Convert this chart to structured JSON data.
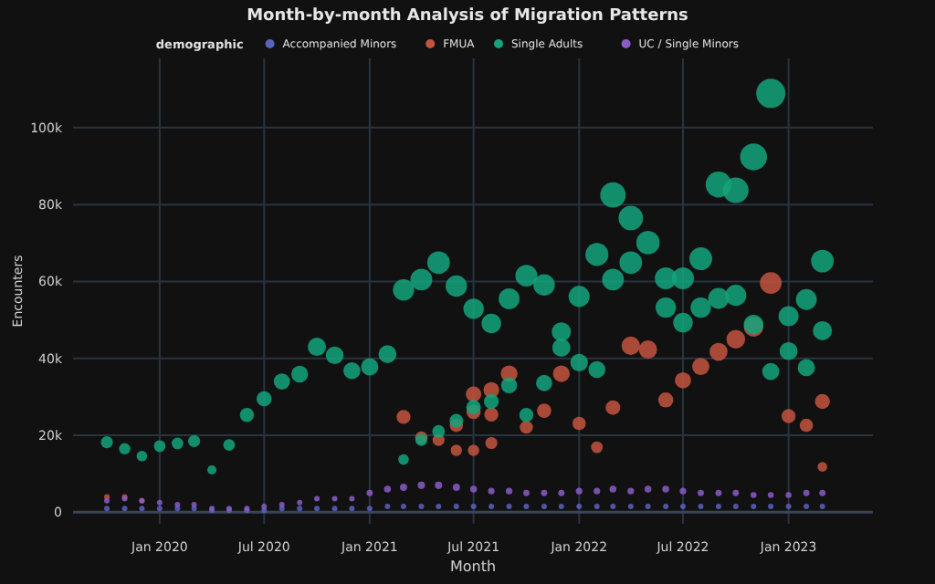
{
  "chart_data": {
    "type": "bubble",
    "title": "Month-by-month Analysis of Migration Patterns",
    "xlabel": "Month",
    "ylabel": "Encounters",
    "legend_title": "demographic",
    "legend": "top",
    "grid": true,
    "marker": "circle",
    "xlim": [
      "2019-08-03",
      "2023-05-28"
    ],
    "ylim": [
      -3000,
      118000
    ],
    "xticks": [
      {
        "value": "2020-01",
        "label": "Jan 2020"
      },
      {
        "value": "2020-07",
        "label": "Jul 2020"
      },
      {
        "value": "2021-01",
        "label": "Jan 2021"
      },
      {
        "value": "2021-07",
        "label": "Jul 2021"
      },
      {
        "value": "2022-01",
        "label": "Jan 2022"
      },
      {
        "value": "2022-07",
        "label": "Jul 2022"
      },
      {
        "value": "2023-01",
        "label": "Jan 2023"
      }
    ],
    "yticks": [
      0,
      {
        "value": 20000,
        "label": "20k"
      },
      {
        "value": 40000,
        "label": "40k"
      },
      {
        "value": 60000,
        "label": "60k"
      },
      {
        "value": 80000,
        "label": "80k"
      },
      {
        "value": 100000,
        "label": "100k"
      }
    ],
    "series": [
      {
        "name": "Accompanied Minors",
        "color": "#5a62c0",
        "x": [
          "2019-10",
          "2019-11",
          "2019-12",
          "2020-01",
          "2020-02",
          "2020-03",
          "2020-04",
          "2020-05",
          "2020-06",
          "2020-07",
          "2020-08",
          "2020-09",
          "2020-10",
          "2020-11",
          "2020-12",
          "2021-01",
          "2021-02",
          "2021-03",
          "2021-04",
          "2021-05",
          "2021-06",
          "2021-07",
          "2021-08",
          "2021-09",
          "2021-10",
          "2021-11",
          "2021-12",
          "2022-01",
          "2022-02",
          "2022-03",
          "2022-04",
          "2022-05",
          "2022-06",
          "2022-07",
          "2022-08",
          "2022-09",
          "2022-10",
          "2022-11",
          "2022-12",
          "2023-01",
          "2023-02",
          "2023-03"
        ],
        "values": [
          1000,
          1000,
          1000,
          1000,
          1000,
          1000,
          500,
          500,
          500,
          500,
          1000,
          1000,
          1000,
          1000,
          1000,
          1000,
          1500,
          1500,
          1500,
          1500,
          1500,
          1500,
          1500,
          1500,
          1500,
          1500,
          1500,
          1500,
          1500,
          1500,
          1500,
          1500,
          1500,
          1500,
          1500,
          1500,
          1500,
          1500,
          1500,
          1500,
          1500,
          1500
        ],
        "sizes": [
          0.035,
          0.035,
          0.035,
          0.035,
          0.035,
          0.035,
          0.035,
          0.035,
          0.035,
          0.035,
          0.035,
          0.035,
          0.035,
          0.035,
          0.035,
          0.035,
          0.035,
          0.035,
          0.035,
          0.035,
          0.035,
          0.035,
          0.035,
          0.035,
          0.035,
          0.035,
          0.035,
          0.035,
          0.035,
          0.035,
          0.035,
          0.035,
          0.035,
          0.035,
          0.035,
          0.035,
          0.035,
          0.035,
          0.035,
          0.035,
          0.035,
          0.035
        ]
      },
      {
        "name": "FMUA",
        "color": "#c4543f",
        "x": [
          "2019-10",
          "2019-11",
          "2019-12",
          "2021-03",
          "2021-04",
          "2021-05",
          "2021-06",
          "2021-06",
          "2021-07",
          "2021-07",
          "2021-07",
          "2021-08",
          "2021-08",
          "2021-08",
          "2021-09",
          "2021-10",
          "2021-11",
          "2021-12",
          "2022-01",
          "2022-02",
          "2022-03",
          "2022-04",
          "2022-05",
          "2022-06",
          "2022-07",
          "2022-08",
          "2022-09",
          "2022-10",
          "2022-11",
          "2022-12",
          "2023-01",
          "2023-02",
          "2023-03",
          "2023-03"
        ],
        "values": [
          4000,
          4000,
          3000,
          24800,
          19400,
          18800,
          22600,
          16100,
          30700,
          26100,
          16100,
          31800,
          25400,
          18000,
          36000,
          22100,
          26400,
          36000,
          23100,
          16900,
          27200,
          43300,
          42300,
          29200,
          34300,
          37900,
          41700,
          45000,
          48200,
          59600,
          25000,
          22600,
          28800,
          11800
        ],
        "sizes": [
          0.037,
          0.037,
          0.035,
          0.23,
          0.18,
          0.17,
          0.21,
          0.15,
          0.28,
          0.24,
          0.15,
          0.29,
          0.23,
          0.17,
          0.33,
          0.2,
          0.24,
          0.33,
          0.21,
          0.16,
          0.25,
          0.4,
          0.39,
          0.27,
          0.31,
          0.35,
          0.38,
          0.41,
          0.44,
          0.55,
          0.23,
          0.21,
          0.26,
          0.11
        ]
      },
      {
        "name": "Single Adults",
        "color": "#13a57c",
        "x": [
          "2019-10",
          "2019-11",
          "2019-12",
          "2020-01",
          "2020-02",
          "2020-03",
          "2020-04",
          "2020-05",
          "2020-06",
          "2020-07",
          "2020-08",
          "2020-09",
          "2020-10",
          "2020-11",
          "2020-12",
          "2021-01",
          "2021-02",
          "2021-03",
          "2021-03",
          "2021-04",
          "2021-04",
          "2021-05",
          "2021-05",
          "2021-06",
          "2021-06",
          "2021-07",
          "2021-07",
          "2021-08",
          "2021-08",
          "2021-09",
          "2021-09",
          "2021-10",
          "2021-10",
          "2021-11",
          "2021-11",
          "2021-12",
          "2021-12",
          "2022-01",
          "2022-01",
          "2022-02",
          "2022-02",
          "2022-03",
          "2022-03",
          "2022-04",
          "2022-04",
          "2022-05",
          "2022-06",
          "2022-06",
          "2022-07",
          "2022-07",
          "2022-08",
          "2022-08",
          "2022-09",
          "2022-09",
          "2022-10",
          "2022-10",
          "2022-11",
          "2022-11",
          "2022-12",
          "2022-12",
          "2023-01",
          "2023-01",
          "2023-02",
          "2023-02",
          "2023-03",
          "2023-03"
        ],
        "values": [
          18200,
          16500,
          14600,
          17200,
          17900,
          18500,
          11000,
          17500,
          25300,
          29500,
          34000,
          35900,
          43000,
          40800,
          36800,
          37800,
          41100,
          57800,
          13700,
          60500,
          18800,
          64900,
          21000,
          58800,
          23800,
          52900,
          27300,
          49100,
          28800,
          55500,
          33000,
          61500,
          25300,
          59100,
          33600,
          46900,
          42800,
          56100,
          38900,
          67000,
          37100,
          82500,
          60500,
          76500,
          64900,
          70100,
          60800,
          53200,
          60800,
          49300,
          65900,
          53200,
          85200,
          55600,
          83700,
          56400,
          92400,
          48800,
          108900,
          36600,
          51000,
          41900,
          55300,
          37600,
          65300,
          47200
        ],
        "sizes": [
          0.17,
          0.15,
          0.13,
          0.16,
          0.16,
          0.17,
          0.1,
          0.16,
          0.23,
          0.27,
          0.31,
          0.33,
          0.39,
          0.37,
          0.34,
          0.35,
          0.38,
          0.53,
          0.13,
          0.56,
          0.17,
          0.6,
          0.19,
          0.54,
          0.22,
          0.49,
          0.25,
          0.45,
          0.26,
          0.51,
          0.3,
          0.56,
          0.23,
          0.54,
          0.31,
          0.43,
          0.39,
          0.52,
          0.36,
          0.62,
          0.34,
          0.76,
          0.56,
          0.7,
          0.6,
          0.64,
          0.56,
          0.49,
          0.56,
          0.45,
          0.61,
          0.49,
          0.78,
          0.51,
          0.77,
          0.52,
          0.85,
          0.45,
          1,
          0.34,
          0.47,
          0.38,
          0.51,
          0.35,
          0.6,
          0.43
        ]
      },
      {
        "name": "UC / Single Minors",
        "color": "#8a5cc8",
        "x": [
          "2019-10",
          "2019-11",
          "2019-12",
          "2020-01",
          "2020-02",
          "2020-03",
          "2020-04",
          "2020-05",
          "2020-06",
          "2020-07",
          "2020-08",
          "2020-09",
          "2020-10",
          "2020-11",
          "2020-12",
          "2021-01",
          "2021-02",
          "2021-03",
          "2021-04",
          "2021-05",
          "2021-06",
          "2021-07",
          "2021-08",
          "2021-09",
          "2021-10",
          "2021-11",
          "2021-12",
          "2022-01",
          "2022-02",
          "2022-03",
          "2022-04",
          "2022-05",
          "2022-06",
          "2022-07",
          "2022-08",
          "2022-09",
          "2022-10",
          "2022-11",
          "2022-12",
          "2023-01",
          "2023-02",
          "2023-03"
        ],
        "values": [
          3000,
          3500,
          3000,
          2500,
          2000,
          2000,
          1000,
          1000,
          1000,
          1500,
          2000,
          2500,
          3500,
          3500,
          3500,
          5000,
          6000,
          6500,
          7000,
          7000,
          6500,
          6000,
          5500,
          5500,
          5000,
          5000,
          5000,
          5500,
          5500,
          6000,
          5500,
          6000,
          6000,
          5500,
          5000,
          5000,
          5000,
          4500,
          4500,
          4500,
          5000,
          5000
        ],
        "sizes": [
          0.035,
          0.035,
          0.035,
          0.035,
          0.035,
          0.035,
          0.035,
          0.035,
          0.035,
          0.035,
          0.035,
          0.035,
          0.035,
          0.035,
          0.035,
          0.046,
          0.055,
          0.06,
          0.064,
          0.064,
          0.06,
          0.055,
          0.05,
          0.05,
          0.046,
          0.046,
          0.046,
          0.05,
          0.05,
          0.055,
          0.05,
          0.055,
          0.055,
          0.05,
          0.046,
          0.046,
          0.046,
          0.041,
          0.041,
          0.041,
          0.046,
          0.046
        ]
      }
    ]
  }
}
